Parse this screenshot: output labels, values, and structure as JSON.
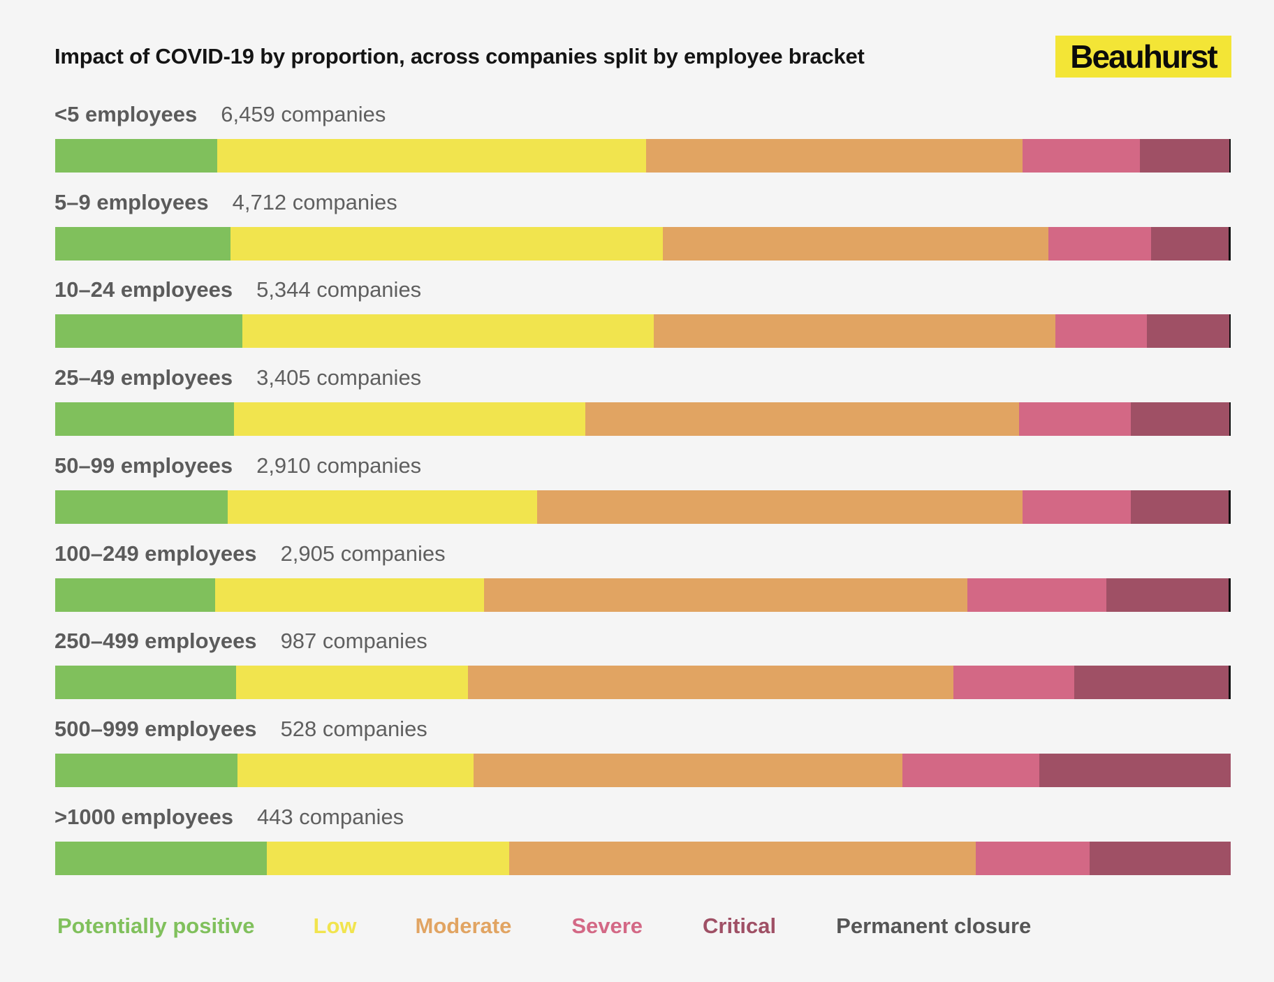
{
  "title": "Impact of COVID-19 by proportion, across companies split by employee bracket",
  "logo": "Beauhurst",
  "legend": [
    {
      "label": "Potentially positive",
      "color": "#80c05c"
    },
    {
      "label": "Low",
      "color": "#f1e44e"
    },
    {
      "label": "Moderate",
      "color": "#e1a462"
    },
    {
      "label": "Severe",
      "color": "#d36885"
    },
    {
      "label": "Critical",
      "color": "#9f5065"
    },
    {
      "label": "Permanent closure",
      "color": "#555555"
    }
  ],
  "chart_data": {
    "type": "bar",
    "orientation": "horizontal",
    "stacked": true,
    "normalized": true,
    "unit": "percent",
    "title": "Impact of COVID-19 by proportion, across companies split by employee bracket",
    "categories": [
      "<5 employees",
      "5–9 employees",
      "10–24 employees",
      "25–49 employees",
      "50–99 employees",
      "100–249 employees",
      "250–499 employees",
      "500–999 employees",
      ">1000 employees"
    ],
    "company_counts": [
      "6,459 companies",
      "4,712 companies",
      "5,344 companies",
      "3,405 companies",
      "2,910 companies",
      "2,905 companies",
      "987 companies",
      "528 companies",
      "443 companies"
    ],
    "series": [
      {
        "name": "Potentially positive",
        "values": [
          13.8,
          14.9,
          15.9,
          15.2,
          14.7,
          13.6,
          15.4,
          15.5,
          18.0
        ]
      },
      {
        "name": "Low",
        "values": [
          36.5,
          36.8,
          35.0,
          29.9,
          26.3,
          22.9,
          19.7,
          20.1,
          20.6
        ]
      },
      {
        "name": "Moderate",
        "values": [
          32.0,
          32.8,
          34.2,
          36.9,
          41.3,
          41.1,
          41.3,
          36.5,
          39.7
        ]
      },
      {
        "name": "Severe",
        "values": [
          10.0,
          8.7,
          7.8,
          9.5,
          9.2,
          11.8,
          10.3,
          11.6,
          9.7
        ]
      },
      {
        "name": "Critical",
        "values": [
          7.6,
          6.6,
          7.0,
          8.4,
          8.3,
          10.4,
          13.1,
          16.3,
          12.0
        ]
      },
      {
        "name": "Permanent closure",
        "values": [
          0.1,
          0.2,
          0.1,
          0.1,
          0.2,
          0.2,
          0.2,
          0.0,
          0.0
        ]
      }
    ]
  }
}
